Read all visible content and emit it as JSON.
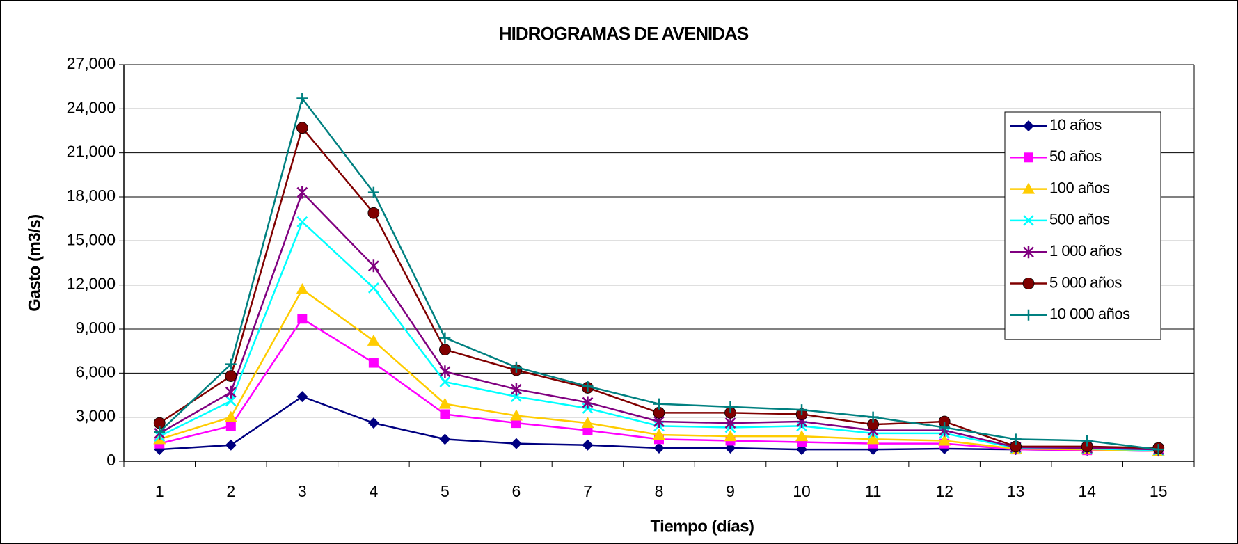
{
  "chart_data": {
    "type": "line",
    "title": "HIDROGRAMAS DE AVENIDAS",
    "xlabel": "Tiempo (días)",
    "ylabel": "Gasto (m3/s)",
    "categories": [
      "1",
      "2",
      "3",
      "4",
      "5",
      "6",
      "7",
      "8",
      "9",
      "10",
      "11",
      "12",
      "13",
      "14",
      "15"
    ],
    "ylim": [
      0,
      27000
    ],
    "yticks": [
      0,
      {
        "value": 3000,
        "label": "3,000"
      },
      {
        "value": 6000,
        "label": "6,000"
      },
      {
        "value": 9000,
        "label": "9,000"
      },
      {
        "value": 12000,
        "label": "12,000"
      },
      {
        "value": 15000,
        "label": "15,000"
      },
      {
        "value": 18000,
        "label": "18,000"
      },
      {
        "value": 21000,
        "label": "21,000"
      },
      {
        "value": 24000,
        "label": "24,000"
      },
      {
        "value": 27000,
        "label": "27,000"
      }
    ],
    "grid": true,
    "legend": "upper right",
    "series": [
      {
        "name": "10 años",
        "color": "#000080",
        "marker": "diamond",
        "values": [
          800,
          1100,
          4400,
          2600,
          1500,
          1200,
          1100,
          900,
          900,
          800,
          800,
          850,
          800,
          750,
          700
        ]
      },
      {
        "name": "50 años",
        "color": "#ff00ff",
        "marker": "square",
        "values": [
          1200,
          2400,
          9700,
          6700,
          3200,
          2600,
          2100,
          1500,
          1400,
          1300,
          1200,
          1200,
          800,
          750,
          700
        ]
      },
      {
        "name": "100 años",
        "color": "#ffcc00",
        "marker": "triangle",
        "values": [
          1500,
          3000,
          11700,
          8200,
          3900,
          3100,
          2600,
          1800,
          1700,
          1700,
          1500,
          1400,
          850,
          800,
          700
        ]
      },
      {
        "name": "500 años",
        "color": "#00ffff",
        "marker": "x",
        "values": [
          1700,
          4100,
          16300,
          11800,
          5400,
          4400,
          3600,
          2400,
          2300,
          2400,
          1900,
          1900,
          900,
          850,
          750
        ]
      },
      {
        "name": "1 000 años",
        "color": "#800080",
        "marker": "star",
        "values": [
          1900,
          4700,
          18300,
          13300,
          6100,
          4900,
          4000,
          2700,
          2600,
          2700,
          2100,
          2100,
          950,
          900,
          800
        ]
      },
      {
        "name": "5 000 años",
        "color": "#800000",
        "marker": "circle",
        "values": [
          2600,
          5800,
          22700,
          16900,
          7600,
          6200,
          5000,
          3300,
          3300,
          3200,
          2500,
          2700,
          1000,
          1000,
          900
        ]
      },
      {
        "name": "10 000 años",
        "color": "#008080",
        "marker": "plus",
        "values": [
          2000,
          6600,
          24700,
          18300,
          8400,
          6400,
          5100,
          3900,
          3700,
          3500,
          3000,
          2300,
          1500,
          1400,
          800
        ]
      }
    ]
  }
}
